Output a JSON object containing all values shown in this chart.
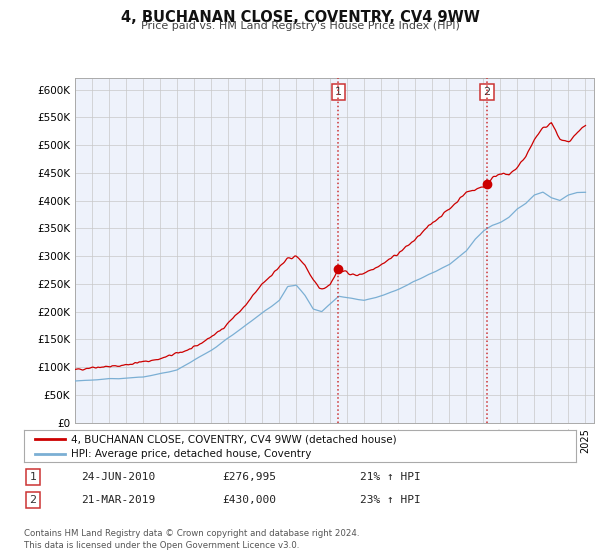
{
  "title": "4, BUCHANAN CLOSE, COVENTRY, CV4 9WW",
  "subtitle": "Price paid vs. HM Land Registry's House Price Index (HPI)",
  "bg_color": "#ffffff",
  "plot_bg_color": "#eef2fb",
  "grid_color": "#c8c8c8",
  "ylim": [
    0,
    620000
  ],
  "yticks": [
    0,
    50000,
    100000,
    150000,
    200000,
    250000,
    300000,
    350000,
    400000,
    450000,
    500000,
    550000,
    600000
  ],
  "ytick_labels": [
    "£0",
    "£50K",
    "£100K",
    "£150K",
    "£200K",
    "£250K",
    "£300K",
    "£350K",
    "£400K",
    "£450K",
    "£500K",
    "£550K",
    "£600K"
  ],
  "red_line_color": "#cc0000",
  "blue_line_color": "#7bafd4",
  "marker1_x": 2010.48,
  "marker1_y": 276995,
  "marker2_x": 2019.22,
  "marker2_y": 430000,
  "vline_color": "#cc3333",
  "legend_label_red": "4, BUCHANAN CLOSE, COVENTRY, CV4 9WW (detached house)",
  "legend_label_blue": "HPI: Average price, detached house, Coventry",
  "table_row1": [
    "1",
    "24-JUN-2010",
    "£276,995",
    "21% ↑ HPI"
  ],
  "table_row2": [
    "2",
    "21-MAR-2019",
    "£430,000",
    "23% ↑ HPI"
  ],
  "footer_line1": "Contains HM Land Registry data © Crown copyright and database right 2024.",
  "footer_line2": "This data is licensed under the Open Government Licence v3.0.",
  "xmin": 1995.0,
  "xmax": 2025.5
}
